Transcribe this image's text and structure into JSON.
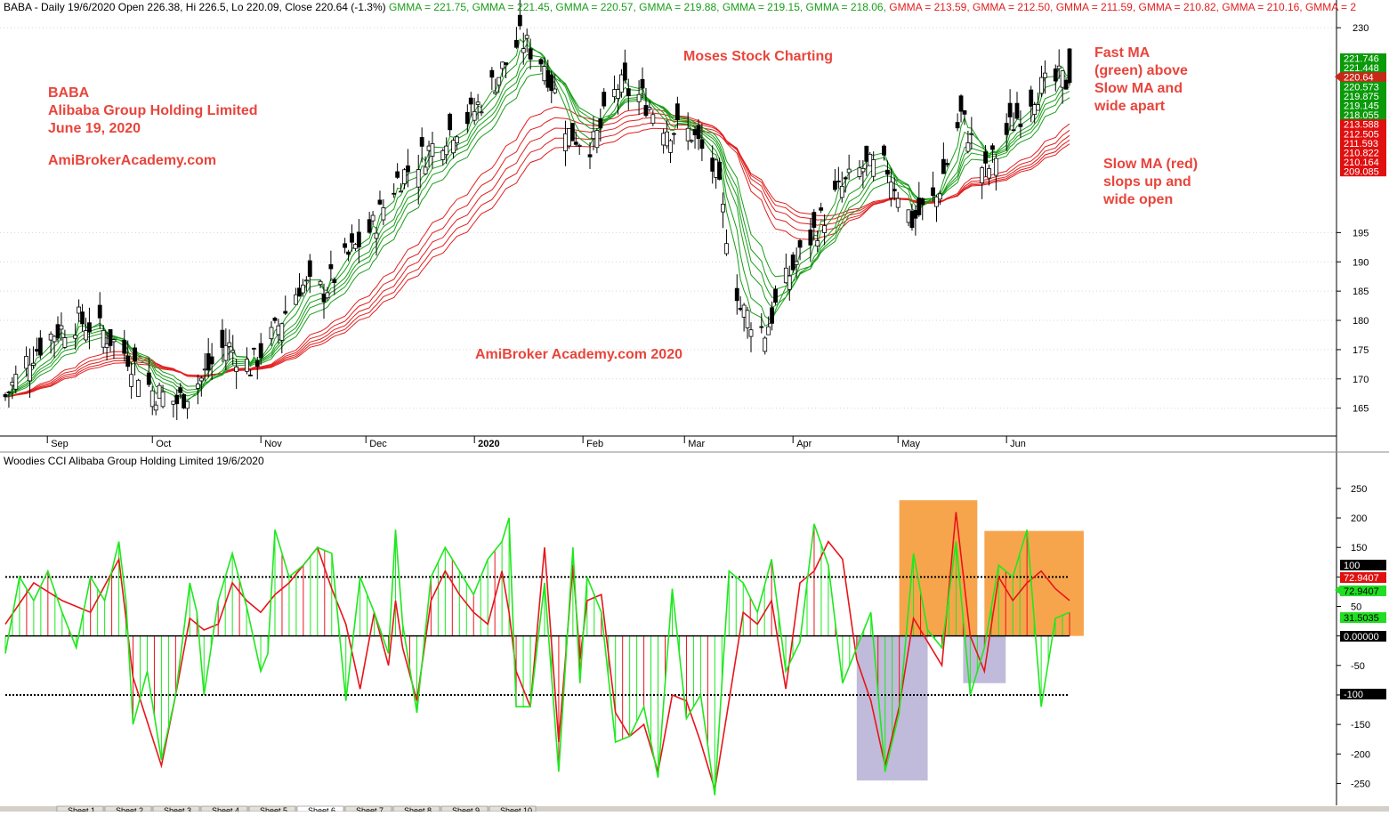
{
  "colors": {
    "fast_ma": "#1a9e1a",
    "slow_ma": "#e02020",
    "up": "#ffffff",
    "down": "#000000",
    "cci_green": "#1ee81e",
    "cci_red": "#e8141a",
    "orange_box": "#f7a043",
    "purple_box": "#b9b4d6",
    "annotation": "#e8453c"
  },
  "price_header": {
    "prefix": "BABA - Daily 19/6/2020 Open 226.38, Hi 226.5, Lo 220.09, Close 220.64 (-1.3%)",
    "gmma": [
      {
        "label": "GMMA = 221.75,",
        "color": "#1a9e1a"
      },
      {
        "label": "GMMA = 221.45,",
        "color": "#1a9e1a"
      },
      {
        "label": "GMMA = 220.57,",
        "color": "#1a9e1a"
      },
      {
        "label": "GMMA = 219.88,",
        "color": "#1a9e1a"
      },
      {
        "label": "GMMA = 219.15,",
        "color": "#1a9e1a"
      },
      {
        "label": "GMMA = 218.06,",
        "color": "#1a9e1a"
      },
      {
        "label": "GMMA = 213.59,",
        "color": "#e02020"
      },
      {
        "label": "GMMA = 212.50,",
        "color": "#e02020"
      },
      {
        "label": "GMMA = 211.59,",
        "color": "#e02020"
      },
      {
        "label": "GMMA = 210.82,",
        "color": "#e02020"
      },
      {
        "label": "GMMA = 210.16,",
        "color": "#e02020"
      },
      {
        "label": "GMMA = 2",
        "color": "#e02020"
      }
    ]
  },
  "cci_header": "Woodies CCI  Alibaba Group Holding Limited 19/6/2020",
  "annotations": {
    "company_lines": [
      "BABA",
      "Alibaba Group Holding Limited",
      "June 19, 2020"
    ],
    "site": "AmiBrokerAcademy.com",
    "watermark_top": "Moses Stock Charting",
    "watermark_mid": "AmiBroker Academy.com  2020",
    "fast_ma_lines": [
      "Fast MA",
      "(green) above",
      "Slow MA and",
      "wide apart"
    ],
    "slow_ma_lines": [
      "Slow MA (red)",
      "slops up and",
      "wide open"
    ]
  },
  "chart_data": [
    {
      "type": "candlestick",
      "title": "BABA - Daily 19/6/2020",
      "x_tick_labels": [
        "Sep",
        "Oct",
        "Nov",
        "Dec",
        "2020",
        "Feb",
        "Mar",
        "Apr",
        "May",
        "Jun"
      ],
      "y_tick_labels": [
        "165",
        "170",
        "175",
        "180",
        "185",
        "190",
        "195",
        "230"
      ],
      "ylim": [
        161,
        232
      ],
      "last": {
        "open": 226.38,
        "high": 226.5,
        "low": 220.09,
        "close": 220.64,
        "change_pct": "-1.3%"
      },
      "gmma_fast_last": [
        221.75,
        221.45,
        220.57,
        219.88,
        219.15,
        218.06
      ],
      "gmma_slow_last": [
        213.59,
        212.5,
        211.59,
        210.82,
        210.16
      ],
      "price_markers": [
        {
          "label": "221.746",
          "kind": "fast"
        },
        {
          "label": "221.448",
          "kind": "fast"
        },
        {
          "label": "220.64",
          "kind": "close"
        },
        {
          "label": "220.573",
          "kind": "fast"
        },
        {
          "label": "219.875",
          "kind": "fast"
        },
        {
          "label": "219.145",
          "kind": "fast"
        },
        {
          "label": "218.055",
          "kind": "fast"
        },
        {
          "label": "213.588",
          "kind": "slow"
        },
        {
          "label": "212.505",
          "kind": "slow"
        },
        {
          "label": "211.593",
          "kind": "slow"
        },
        {
          "label": "210.822",
          "kind": "slow"
        },
        {
          "label": "210.164",
          "kind": "slow"
        },
        {
          "label": "209.085",
          "kind": "slow"
        }
      ],
      "close_path": [
        {
          "date": "2019-08-20",
          "close": 167
        },
        {
          "date": "2019-08-27",
          "close": 174
        },
        {
          "date": "2019-09-03",
          "close": 178
        },
        {
          "date": "2019-09-10",
          "close": 180
        },
        {
          "date": "2019-09-17",
          "close": 178
        },
        {
          "date": "2019-09-24",
          "close": 174
        },
        {
          "date": "2019-10-01",
          "close": 168
        },
        {
          "date": "2019-10-08",
          "close": 166
        },
        {
          "date": "2019-10-15",
          "close": 170
        },
        {
          "date": "2019-10-22",
          "close": 176
        },
        {
          "date": "2019-10-29",
          "close": 172
        },
        {
          "date": "2019-11-05",
          "close": 178
        },
        {
          "date": "2019-11-12",
          "close": 186
        },
        {
          "date": "2019-11-19",
          "close": 185
        },
        {
          "date": "2019-11-26",
          "close": 191
        },
        {
          "date": "2019-12-03",
          "close": 196
        },
        {
          "date": "2019-12-10",
          "close": 204
        },
        {
          "date": "2019-12-17",
          "close": 208
        },
        {
          "date": "2019-12-24",
          "close": 212
        },
        {
          "date": "2019-12-31",
          "close": 215
        },
        {
          "date": "2020-01-07",
          "close": 221
        },
        {
          "date": "2020-01-14",
          "close": 228
        },
        {
          "date": "2020-01-21",
          "close": 224
        },
        {
          "date": "2020-01-28",
          "close": 212
        },
        {
          "date": "2020-02-04",
          "close": 210
        },
        {
          "date": "2020-02-11",
          "close": 220
        },
        {
          "date": "2020-02-18",
          "close": 218
        },
        {
          "date": "2020-02-25",
          "close": 213
        },
        {
          "date": "2020-03-03",
          "close": 212
        },
        {
          "date": "2020-03-10",
          "close": 205
        },
        {
          "date": "2020-03-17",
          "close": 182
        },
        {
          "date": "2020-03-24",
          "close": 178
        },
        {
          "date": "2020-03-31",
          "close": 188
        },
        {
          "date": "2020-04-07",
          "close": 195
        },
        {
          "date": "2020-04-14",
          "close": 202
        },
        {
          "date": "2020-04-21",
          "close": 206
        },
        {
          "date": "2020-04-28",
          "close": 206
        },
        {
          "date": "2020-05-05",
          "close": 197
        },
        {
          "date": "2020-05-12",
          "close": 201
        },
        {
          "date": "2020-05-19",
          "close": 215
        },
        {
          "date": "2020-05-26",
          "close": 205
        },
        {
          "date": "2020-06-02",
          "close": 213
        },
        {
          "date": "2020-06-09",
          "close": 219
        },
        {
          "date": "2020-06-16",
          "close": 221
        },
        {
          "date": "2020-06-19",
          "close": 220.64
        }
      ]
    },
    {
      "type": "line",
      "title": "Woodies CCI  Alibaba Group Holding Limited 19/6/2020",
      "y_tick_labels": [
        "250",
        "200",
        "150",
        "100",
        "50",
        "0",
        "-50",
        "-100",
        "-150",
        "-200",
        "-250"
      ],
      "ylim": [
        -275,
        280
      ],
      "reference_lines": [
        100,
        0,
        -100
      ],
      "value_markers": [
        {
          "label": "100",
          "kind": "black"
        },
        {
          "label": "72.9407",
          "kind": "red"
        },
        {
          "label": "72.9407",
          "kind": "green"
        },
        {
          "label": "31.5035",
          "kind": "green"
        },
        {
          "label": "0.00000",
          "kind": "black"
        },
        {
          "label": "-100",
          "kind": "black"
        }
      ],
      "series": [
        {
          "role": "cci_green",
          "points": [
            [
              0,
              -30
            ],
            [
              2,
              100
            ],
            [
              4,
              60
            ],
            [
              6,
              110
            ],
            [
              8,
              40
            ],
            [
              10,
              -20
            ],
            [
              12,
              100
            ],
            [
              14,
              60
            ],
            [
              16,
              160
            ],
            [
              17,
              60
            ],
            [
              18,
              -150
            ],
            [
              20,
              -60
            ],
            [
              22,
              -210
            ],
            [
              24,
              -100
            ],
            [
              26,
              90
            ],
            [
              27,
              40
            ],
            [
              28,
              -100
            ],
            [
              30,
              60
            ],
            [
              32,
              140
            ],
            [
              34,
              50
            ],
            [
              36,
              -60
            ],
            [
              37,
              -30
            ],
            [
              38,
              180
            ],
            [
              40,
              100
            ],
            [
              42,
              120
            ],
            [
              44,
              150
            ],
            [
              46,
              140
            ],
            [
              48,
              -110
            ],
            [
              50,
              100
            ],
            [
              52,
              40
            ],
            [
              54,
              -30
            ],
            [
              55,
              180
            ],
            [
              56,
              20
            ],
            [
              58,
              -130
            ],
            [
              60,
              100
            ],
            [
              62,
              150
            ],
            [
              64,
              110
            ],
            [
              66,
              70
            ],
            [
              68,
              130
            ],
            [
              70,
              160
            ],
            [
              71,
              200
            ],
            [
              72,
              -120
            ],
            [
              74,
              -120
            ],
            [
              76,
              90
            ],
            [
              78,
              -230
            ],
            [
              80,
              150
            ],
            [
              81,
              -80
            ],
            [
              82,
              100
            ],
            [
              84,
              40
            ],
            [
              86,
              -180
            ],
            [
              88,
              -170
            ],
            [
              90,
              -120
            ],
            [
              92,
              -240
            ],
            [
              94,
              80
            ],
            [
              96,
              -140
            ],
            [
              98,
              -100
            ],
            [
              100,
              -270
            ],
            [
              102,
              110
            ],
            [
              104,
              90
            ],
            [
              106,
              40
            ],
            [
              108,
              130
            ],
            [
              110,
              -60
            ],
            [
              112,
              -10
            ],
            [
              114,
              190
            ],
            [
              116,
              120
            ],
            [
              118,
              -80
            ],
            [
              120,
              -20
            ],
            [
              122,
              40
            ],
            [
              124,
              -230
            ],
            [
              126,
              -130
            ],
            [
              128,
              140
            ],
            [
              130,
              10
            ],
            [
              132,
              -20
            ],
            [
              134,
              160
            ],
            [
              136,
              -100
            ],
            [
              138,
              -20
            ],
            [
              140,
              120
            ],
            [
              142,
              100
            ],
            [
              144,
              180
            ],
            [
              146,
              -120
            ],
            [
              148,
              30
            ],
            [
              150,
              40
            ]
          ]
        },
        {
          "role": "cci_red",
          "points": [
            [
              0,
              20
            ],
            [
              4,
              90
            ],
            [
              8,
              60
            ],
            [
              12,
              40
            ],
            [
              16,
              130
            ],
            [
              18,
              -70
            ],
            [
              22,
              -220
            ],
            [
              24,
              -100
            ],
            [
              26,
              30
            ],
            [
              28,
              10
            ],
            [
              30,
              20
            ],
            [
              32,
              90
            ],
            [
              34,
              60
            ],
            [
              36,
              40
            ],
            [
              38,
              70
            ],
            [
              40,
              90
            ],
            [
              42,
              120
            ],
            [
              44,
              150
            ],
            [
              46,
              80
            ],
            [
              48,
              20
            ],
            [
              50,
              -90
            ],
            [
              52,
              40
            ],
            [
              54,
              -50
            ],
            [
              55,
              60
            ],
            [
              56,
              -20
            ],
            [
              58,
              -110
            ],
            [
              60,
              60
            ],
            [
              62,
              110
            ],
            [
              64,
              70
            ],
            [
              66,
              40
            ],
            [
              68,
              20
            ],
            [
              70,
              110
            ],
            [
              71,
              40
            ],
            [
              72,
              -60
            ],
            [
              74,
              -120
            ],
            [
              76,
              150
            ],
            [
              78,
              -180
            ],
            [
              80,
              120
            ],
            [
              81,
              -40
            ],
            [
              82,
              60
            ],
            [
              84,
              70
            ],
            [
              86,
              -130
            ],
            [
              88,
              -170
            ],
            [
              90,
              -150
            ],
            [
              92,
              -230
            ],
            [
              94,
              -100
            ],
            [
              96,
              -110
            ],
            [
              98,
              -180
            ],
            [
              100,
              -260
            ],
            [
              102,
              -110
            ],
            [
              104,
              40
            ],
            [
              106,
              20
            ],
            [
              108,
              60
            ],
            [
              110,
              -90
            ],
            [
              112,
              90
            ],
            [
              114,
              110
            ],
            [
              116,
              160
            ],
            [
              118,
              130
            ],
            [
              120,
              -40
            ],
            [
              122,
              -110
            ],
            [
              124,
              -220
            ],
            [
              126,
              -120
            ],
            [
              128,
              30
            ],
            [
              130,
              -10
            ],
            [
              132,
              -50
            ],
            [
              134,
              210
            ],
            [
              136,
              0
            ],
            [
              138,
              -60
            ],
            [
              140,
              100
            ],
            [
              142,
              60
            ],
            [
              144,
              90
            ],
            [
              146,
              110
            ],
            [
              148,
              80
            ],
            [
              150,
              60
            ]
          ]
        }
      ],
      "highlight_boxes": [
        {
          "kind": "orange",
          "x_range": [
            126,
            137
          ],
          "y_range": [
            0,
            230
          ]
        },
        {
          "kind": "orange",
          "x_range": [
            138,
            152
          ],
          "y_range": [
            0,
            178
          ]
        },
        {
          "kind": "purple",
          "x_range": [
            120,
            130
          ],
          "y_range": [
            -245,
            0
          ]
        },
        {
          "kind": "purple",
          "x_range": [
            135,
            141
          ],
          "y_range": [
            -80,
            0
          ]
        }
      ]
    }
  ],
  "tabs": [
    "Sheet 1",
    "Sheet 2",
    "Sheet 3",
    "Sheet 4",
    "Sheet 5",
    "Sheet 6",
    "Sheet 7",
    "Sheet 8",
    "Sheet 9",
    "Sheet 10"
  ]
}
